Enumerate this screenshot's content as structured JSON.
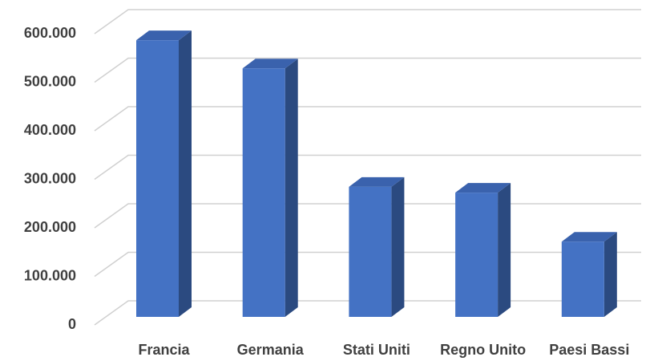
{
  "chart_data": {
    "type": "bar3d",
    "categories": [
      "Francia",
      "Germania",
      "Stati Uniti",
      "Regno Unito",
      "Paesi Bassi"
    ],
    "values": [
      570000,
      512000,
      268000,
      256000,
      155000
    ],
    "color": "#4472c4",
    "ylim": [
      0,
      600000
    ],
    "yticks": [
      0,
      {
        "value": 100000,
        "label": "100.000"
      },
      {
        "value": 200000,
        "label": "200.000"
      },
      {
        "value": 300000,
        "label": "300.000"
      },
      {
        "value": 400000,
        "label": "400.000"
      },
      {
        "value": 500000,
        "label": "500.000"
      },
      {
        "value": 600000,
        "label": "600.000"
      }
    ],
    "grid": true
  }
}
